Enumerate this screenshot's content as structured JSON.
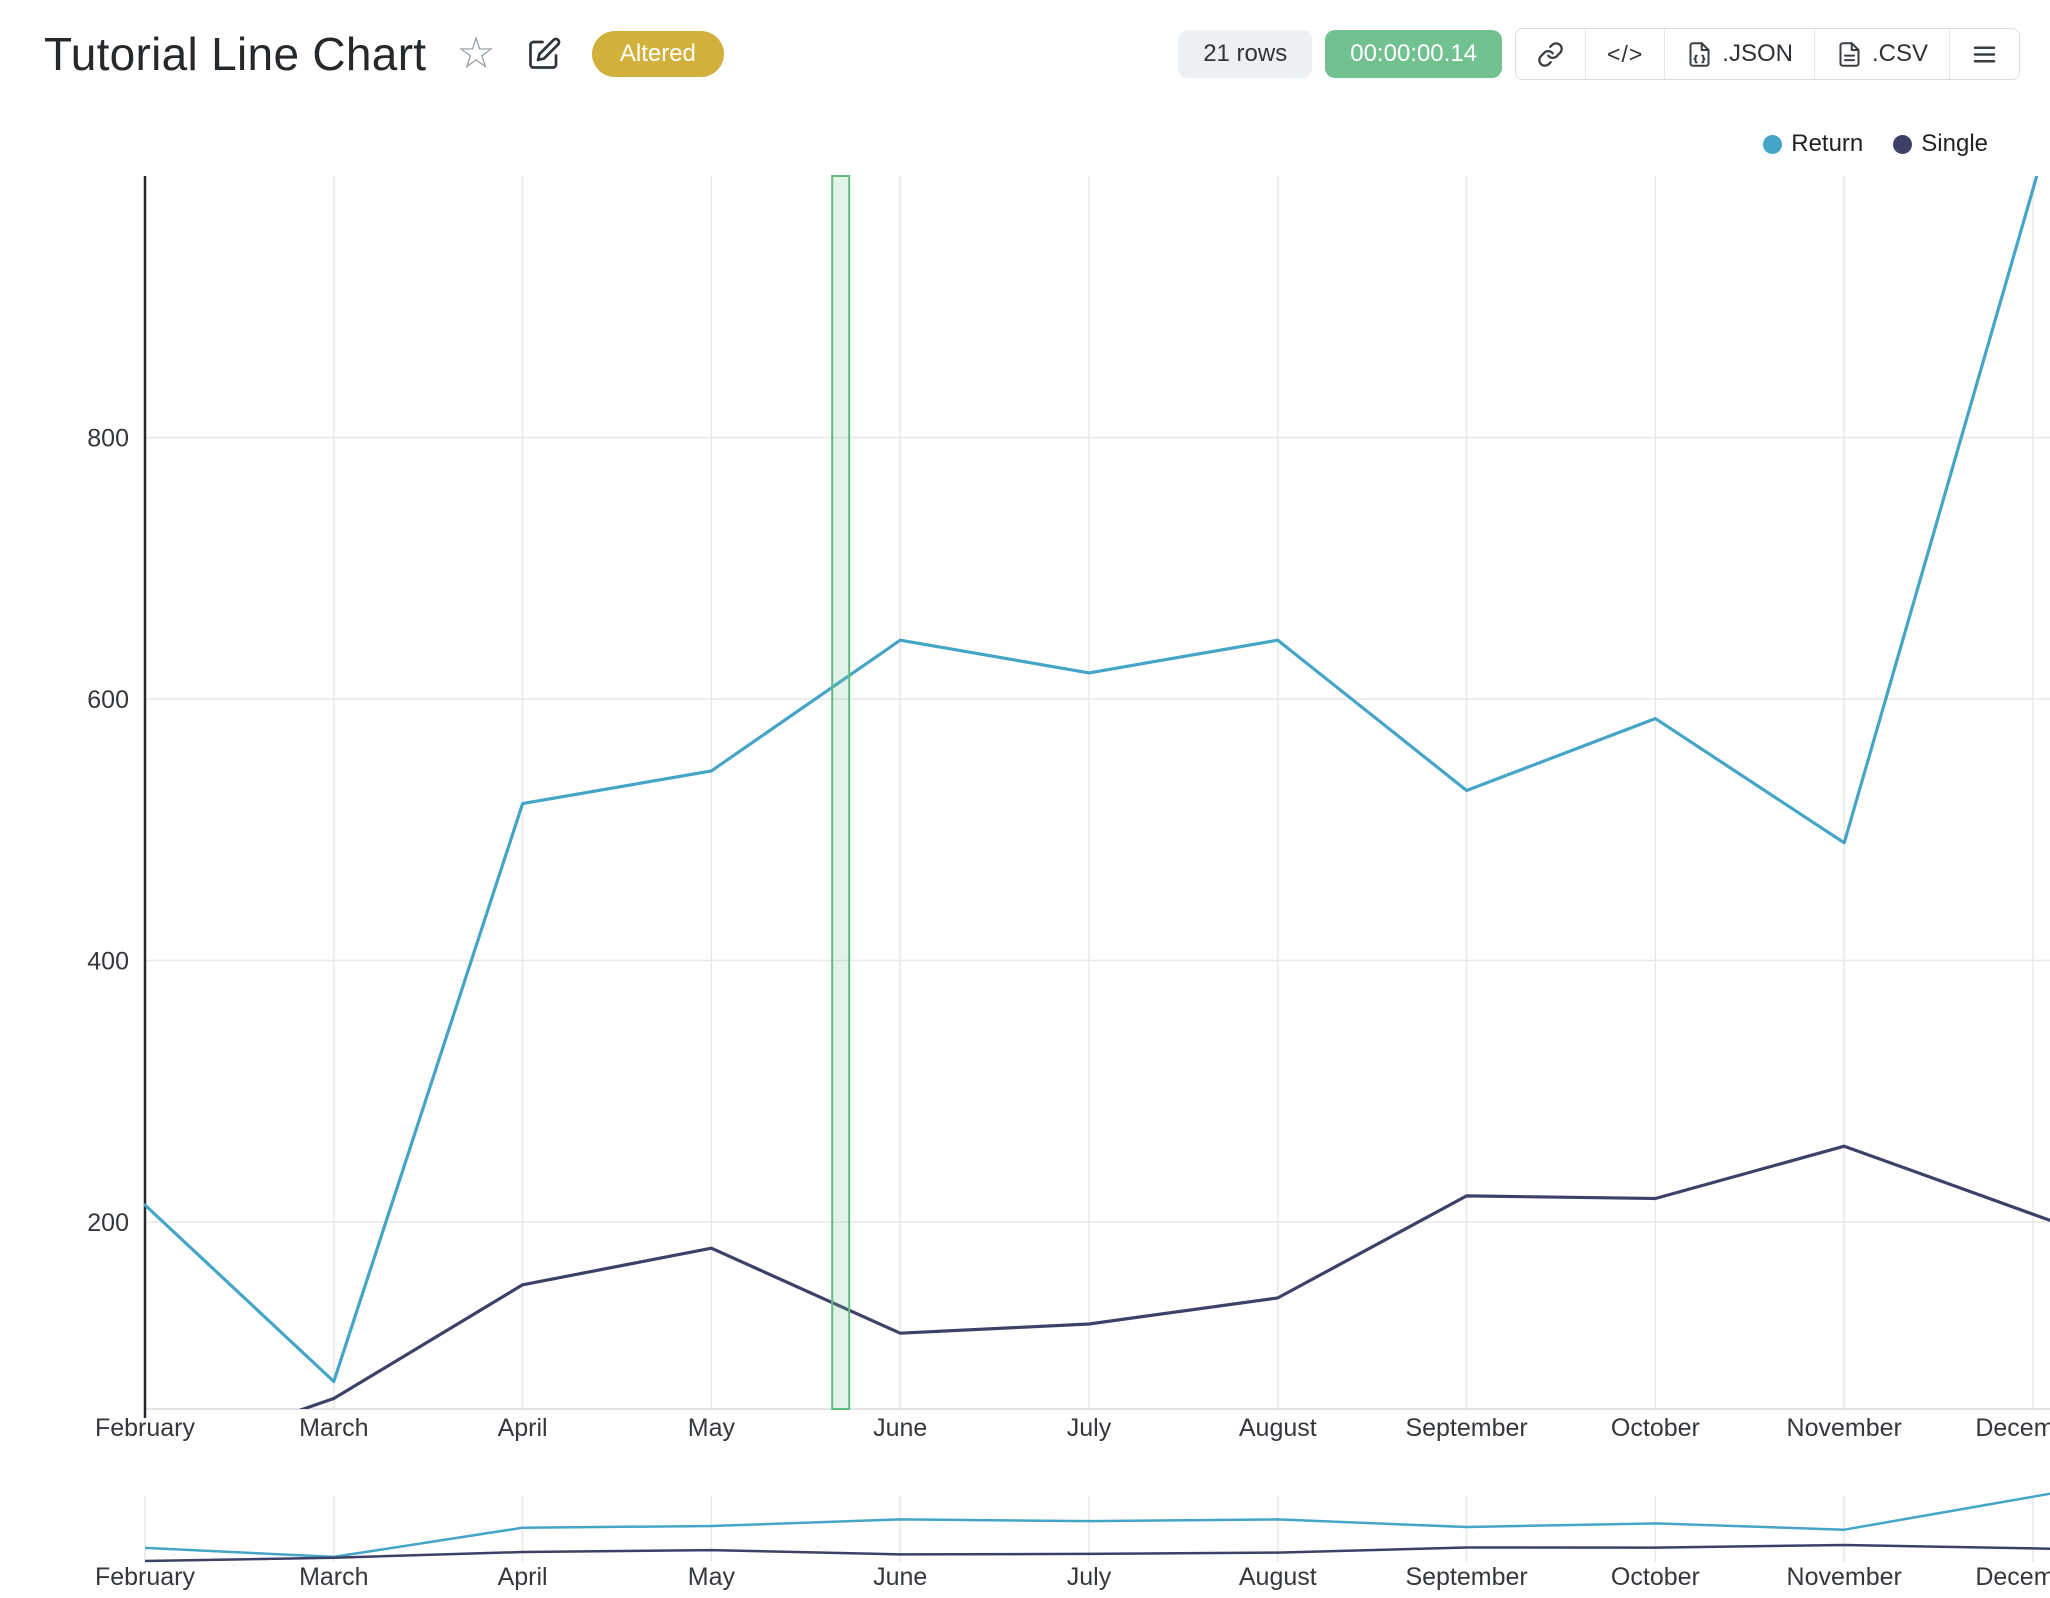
{
  "header": {
    "title": "Tutorial Line Chart",
    "altered_badge": "Altered",
    "rows_label": "21 rows",
    "timer_label": "00:00:00.14",
    "export_json_label": ".JSON",
    "export_csv_label": ".CSV"
  },
  "icons": {
    "star": "☆",
    "code": "</>"
  },
  "legend": [
    {
      "label": "Return",
      "color": "#45a5c7"
    },
    {
      "label": "Single",
      "color": "#3d4168"
    }
  ],
  "colors": {
    "series_return": "#45a5c7",
    "series_single": "#3d4168",
    "altered_badge_bg": "#d2b03c",
    "timer_badge_bg": "#72c191",
    "rows_badge_bg": "#edf0f2",
    "selection_border": "#64bb81",
    "selection_fill": "rgba(124,199,152,0.22)"
  },
  "chart_data": {
    "type": "line",
    "title": "Tutorial Line Chart",
    "categories": [
      "February",
      "March",
      "April",
      "May",
      "June",
      "July",
      "August",
      "September",
      "October",
      "November",
      "December"
    ],
    "series": [
      {
        "name": "Return",
        "color": "#45a5c7",
        "values": [
          213,
          78,
          520,
          545,
          645,
          620,
          645,
          530,
          585,
          490,
          990
        ]
      },
      {
        "name": "Single",
        "color": "#3d4168",
        "values": [
          15,
          65,
          152,
          180,
          115,
          122,
          142,
          220,
          218,
          258,
          206
        ]
      }
    ],
    "xlabel": "",
    "ylabel": "",
    "yticks": [
      200,
      400,
      600,
      800
    ],
    "y_axis_range": [
      57,
      1000
    ],
    "mini_y_range": [
      0,
      1000
    ],
    "selection_band": {
      "start_index": 3.64,
      "end_index": 3.73
    },
    "legend_position": "top-right",
    "grid": true,
    "has_mini_navigator": true
  }
}
